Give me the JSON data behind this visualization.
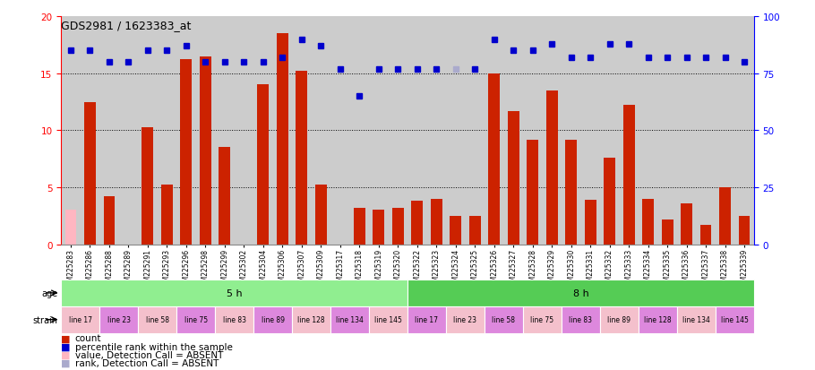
{
  "title": "GDS2981 / 1623383_at",
  "gsm_labels": [
    "GSM225283",
    "GSM225286",
    "GSM225288",
    "GSM225289",
    "GSM225291",
    "GSM225293",
    "GSM225296",
    "GSM225298",
    "GSM225299",
    "GSM225302",
    "GSM225304",
    "GSM225306",
    "GSM225307",
    "GSM225309",
    "GSM225317",
    "GSM225318",
    "GSM225319",
    "GSM225320",
    "GSM225322",
    "GSM225323",
    "GSM225324",
    "GSM225325",
    "GSM225326",
    "GSM225327",
    "GSM225328",
    "GSM225329",
    "GSM225330",
    "GSM225331",
    "GSM225332",
    "GSM225333",
    "GSM225334",
    "GSM225335",
    "GSM225336",
    "GSM225337",
    "GSM225338",
    "GSM225339"
  ],
  "counts": [
    3.0,
    12.5,
    4.2,
    0.0,
    10.3,
    5.2,
    16.2,
    16.5,
    8.5,
    0.0,
    14.0,
    18.5,
    15.2,
    5.2,
    0.0,
    3.2,
    3.0,
    3.2,
    3.8,
    4.0,
    2.5,
    2.5,
    15.0,
    11.7,
    9.2,
    13.5,
    9.2,
    3.9,
    7.6,
    12.2,
    4.0,
    2.2,
    3.6,
    1.7,
    5.0,
    2.5
  ],
  "absent_count_mask": [
    true,
    false,
    false,
    false,
    false,
    false,
    false,
    false,
    false,
    false,
    false,
    false,
    false,
    false,
    true,
    false,
    false,
    false,
    false,
    false,
    false,
    false,
    false,
    false,
    false,
    false,
    false,
    false,
    false,
    false,
    false,
    false,
    false,
    false,
    false,
    false
  ],
  "percentile_ranks": [
    85,
    85,
    80,
    80,
    85,
    85,
    87,
    80,
    80,
    80,
    80,
    82,
    90,
    87,
    77,
    65,
    77,
    77,
    77,
    77,
    77,
    77,
    90,
    85,
    85,
    88,
    82,
    82,
    88,
    88,
    82,
    82,
    82,
    82,
    82,
    80
  ],
  "absent_rank_mask": [
    false,
    false,
    false,
    false,
    false,
    false,
    false,
    false,
    false,
    false,
    false,
    false,
    false,
    false,
    false,
    false,
    false,
    false,
    false,
    false,
    true,
    false,
    false,
    false,
    false,
    false,
    false,
    false,
    false,
    false,
    false,
    false,
    false,
    false,
    false,
    false
  ],
  "age_groups": [
    {
      "label": "5 h",
      "start": 0,
      "end": 18,
      "color": "#90EE90"
    },
    {
      "label": "8 h",
      "start": 18,
      "end": 36,
      "color": "#55CC55"
    }
  ],
  "strain_groups": [
    {
      "label": "line 17",
      "start": 0,
      "end": 2
    },
    {
      "label": "line 23",
      "start": 2,
      "end": 4
    },
    {
      "label": "line 58",
      "start": 4,
      "end": 6
    },
    {
      "label": "line 75",
      "start": 6,
      "end": 8
    },
    {
      "label": "line 83",
      "start": 8,
      "end": 10
    },
    {
      "label": "line 89",
      "start": 10,
      "end": 12
    },
    {
      "label": "line 128",
      "start": 12,
      "end": 14
    },
    {
      "label": "line 134",
      "start": 14,
      "end": 16
    },
    {
      "label": "line 145",
      "start": 16,
      "end": 18
    },
    {
      "label": "line 17",
      "start": 18,
      "end": 20
    },
    {
      "label": "line 23",
      "start": 20,
      "end": 22
    },
    {
      "label": "line 58",
      "start": 22,
      "end": 24
    },
    {
      "label": "line 75",
      "start": 24,
      "end": 26
    },
    {
      "label": "line 83",
      "start": 26,
      "end": 28
    },
    {
      "label": "line 89",
      "start": 28,
      "end": 30
    },
    {
      "label": "line 128",
      "start": 30,
      "end": 32
    },
    {
      "label": "line 134",
      "start": 32,
      "end": 34
    },
    {
      "label": "line 145",
      "start": 34,
      "end": 36
    }
  ],
  "ylim_left": [
    0,
    20
  ],
  "ylim_right": [
    0,
    100
  ],
  "yticks_left": [
    0,
    5,
    10,
    15,
    20
  ],
  "yticks_right": [
    0,
    25,
    50,
    75,
    100
  ],
  "bar_color_present": "#CC2200",
  "bar_color_absent": "#FFB6C1",
  "rank_color_present": "#0000CC",
  "rank_color_absent": "#AAAACC",
  "bg_color": "#CCCCCC",
  "rank_scale": 0.2,
  "strain_colors": [
    "#F4C0CC",
    "#DD88DD"
  ],
  "legend_items": [
    {
      "color": "#CC2200",
      "label": "count"
    },
    {
      "color": "#0000CC",
      "label": "percentile rank within the sample"
    },
    {
      "color": "#FFB6C1",
      "label": "value, Detection Call = ABSENT"
    },
    {
      "color": "#AAAACC",
      "label": "rank, Detection Call = ABSENT"
    }
  ]
}
